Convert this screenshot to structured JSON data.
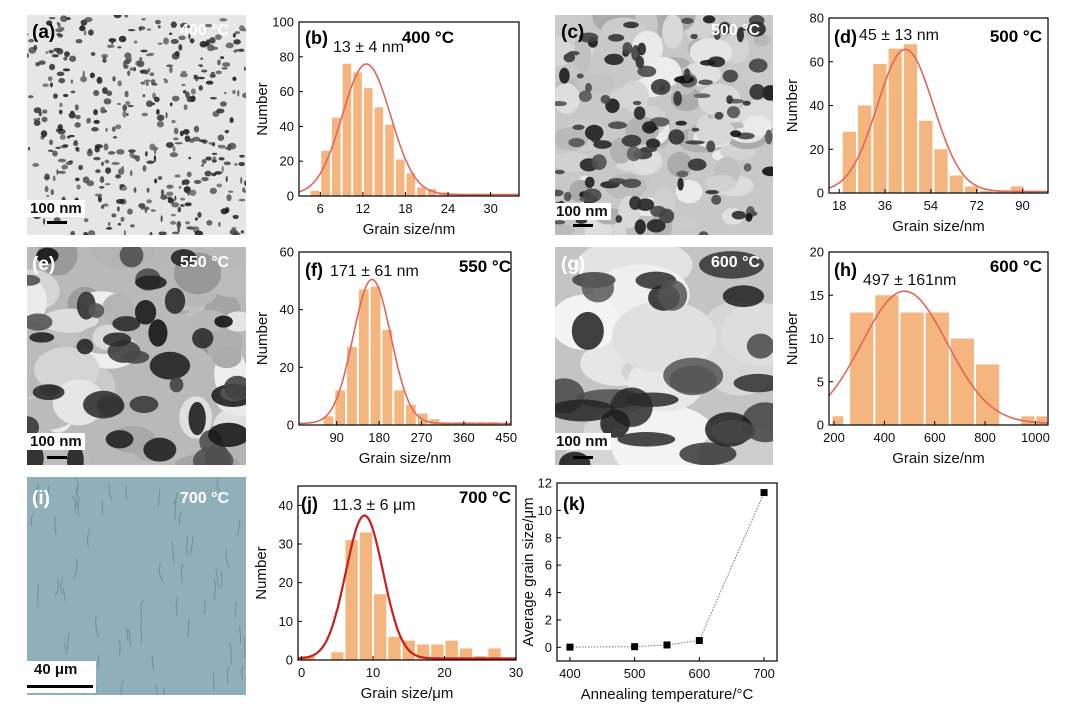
{
  "images": [
    {
      "id": "a",
      "label": "(a)",
      "temp": "400 °C",
      "scale": "100 nm",
      "style": "dots"
    },
    {
      "id": "c",
      "label": "(c)",
      "temp": "500 °C",
      "scale": "100 nm",
      "style": "blobs"
    },
    {
      "id": "e",
      "label": "(e)",
      "temp": "550 °C",
      "scale": "100 nm",
      "style": "grains"
    },
    {
      "id": "g",
      "label": "(g)",
      "temp": "600 °C",
      "scale": "100 nm",
      "style": "large"
    },
    {
      "id": "i",
      "label": "(i)",
      "temp": "700 °C",
      "scale": "40 μm",
      "style": "optical"
    }
  ],
  "chart_data": [
    {
      "id": "b",
      "type": "bar",
      "label": "(b)",
      "temp_label": "400 °C",
      "annotation": "13 ± 4 nm",
      "xlabel": "Grain size/nm",
      "ylabel": "Number",
      "xlim": [
        3,
        34
      ],
      "ylim": [
        0,
        100
      ],
      "xticks": [
        6,
        12,
        18,
        24,
        30
      ],
      "yticks": [
        0,
        20,
        40,
        60,
        80,
        100
      ],
      "bins": [
        [
          4.5,
          6,
          3
        ],
        [
          6,
          7.5,
          26
        ],
        [
          7.5,
          9,
          45
        ],
        [
          9,
          10.5,
          76
        ],
        [
          10.5,
          12,
          71
        ],
        [
          12,
          13.5,
          62
        ],
        [
          13.5,
          15,
          51
        ],
        [
          15,
          16.5,
          41
        ],
        [
          16.5,
          18,
          21
        ],
        [
          18,
          19.5,
          13
        ],
        [
          19.5,
          21,
          5
        ],
        [
          21,
          22.5,
          4
        ],
        [
          22.5,
          24,
          2
        ],
        [
          24,
          25.5,
          1
        ],
        [
          25.5,
          27,
          1
        ],
        [
          27,
          28.5,
          1
        ],
        [
          28.5,
          30,
          1
        ]
      ],
      "fit": {
        "mean": 12.5,
        "sd": 3.4,
        "amp": 75
      },
      "bar_color": "#f5b57e",
      "fit_color": "#e0675a"
    },
    {
      "id": "d",
      "type": "bar",
      "label": "(d)",
      "temp_label": "500 °C",
      "annotation": "45 ± 13 nm",
      "xlabel": "Grain size/nm",
      "ylabel": "Number",
      "xlim": [
        14,
        100
      ],
      "ylim": [
        0,
        80
      ],
      "xticks": [
        18,
        36,
        54,
        72,
        90
      ],
      "yticks": [
        0,
        20,
        40,
        60,
        80
      ],
      "bins": [
        [
          19,
          25,
          28
        ],
        [
          25,
          31,
          40
        ],
        [
          31,
          37,
          59
        ],
        [
          37,
          43,
          66
        ],
        [
          43,
          49,
          68
        ],
        [
          49,
          55,
          33
        ],
        [
          55,
          61,
          20
        ],
        [
          61,
          67,
          8
        ],
        [
          67,
          73,
          3
        ],
        [
          73,
          79,
          1
        ],
        [
          79,
          85,
          1
        ],
        [
          85,
          91,
          3
        ],
        [
          91,
          97,
          1
        ]
      ],
      "fit": {
        "mean": 44,
        "sd": 11,
        "amp": 65
      },
      "bar_color": "#f5b57e",
      "fit_color": "#e0675a"
    },
    {
      "id": "f",
      "type": "bar",
      "label": "(f)",
      "temp_label": "550 °C",
      "annotation": "171 ± 61 nm",
      "xlabel": "Grain size/nm",
      "ylabel": "Number",
      "xlim": [
        10,
        460
      ],
      "ylim": [
        0,
        60
      ],
      "xticks": [
        90,
        180,
        270,
        360,
        450
      ],
      "yticks": [
        0,
        20,
        40,
        60
      ],
      "bins": [
        [
          60,
          85,
          3
        ],
        [
          85,
          110,
          12
        ],
        [
          110,
          135,
          27
        ],
        [
          135,
          160,
          47
        ],
        [
          160,
          185,
          48
        ],
        [
          185,
          210,
          33
        ],
        [
          210,
          235,
          12
        ],
        [
          235,
          260,
          7
        ],
        [
          260,
          285,
          4
        ],
        [
          285,
          310,
          2
        ],
        [
          310,
          335,
          1
        ],
        [
          335,
          360,
          1
        ],
        [
          360,
          385,
          1
        ],
        [
          385,
          410,
          1
        ],
        [
          410,
          435,
          1
        ]
      ],
      "fit": {
        "mean": 165,
        "sd": 40,
        "amp": 50
      },
      "bar_color": "#f5b57e",
      "fit_color": "#e0675a"
    },
    {
      "id": "h",
      "type": "bar",
      "label": "(h)",
      "temp_label": "600 °C",
      "annotation": "497 ± 161nm",
      "xlabel": "Grain size/nm",
      "ylabel": "Number",
      "xlim": [
        180,
        1050
      ],
      "ylim": [
        0,
        20
      ],
      "xticks": [
        200,
        400,
        600,
        800,
        1000
      ],
      "yticks": [
        0,
        5,
        10,
        15,
        20
      ],
      "bins": [
        [
          190,
          240,
          1
        ],
        [
          260,
          360,
          13
        ],
        [
          360,
          460,
          15
        ],
        [
          460,
          560,
          13
        ],
        [
          560,
          660,
          13
        ],
        [
          660,
          760,
          10
        ],
        [
          760,
          860,
          7
        ],
        [
          940,
          1000,
          1
        ],
        [
          1000,
          1050,
          1
        ]
      ],
      "fit": {
        "mean": 480,
        "sd": 170,
        "amp": 15.3
      },
      "bar_color": "#f5b57e",
      "fit_color": "#e0675a"
    },
    {
      "id": "j",
      "type": "bar",
      "label": "(j)",
      "temp_label": "700 °C",
      "annotation": "11.3 ± 6 μm",
      "xlabel": "Grain size/μm",
      "ylabel": "Number",
      "xlim": [
        -0.5,
        30
      ],
      "ylim": [
        0,
        45
      ],
      "xticks": [
        0,
        10,
        20,
        30
      ],
      "yticks": [
        0,
        10,
        20,
        30,
        40
      ],
      "bins": [
        [
          0,
          2,
          1
        ],
        [
          4,
          6,
          2
        ],
        [
          6,
          8,
          31
        ],
        [
          8,
          10,
          33
        ],
        [
          10,
          12,
          17
        ],
        [
          12,
          14,
          6
        ],
        [
          14,
          16,
          5
        ],
        [
          16,
          18,
          4
        ],
        [
          18,
          20,
          4
        ],
        [
          20,
          22,
          5
        ],
        [
          22,
          24,
          3
        ],
        [
          24,
          26,
          1
        ],
        [
          26,
          28,
          3
        ]
      ],
      "fit": {
        "mean": 8.8,
        "sd": 2.6,
        "amp": 37
      },
      "bar_color": "#f5b57e",
      "fit_color": "#c81e1e"
    },
    {
      "id": "k",
      "type": "scatter",
      "label": "(k)",
      "xlabel": "Annealing temperature/°C",
      "ylabel": "Average grain size/μm",
      "xlim": [
        380,
        720
      ],
      "ylim": [
        -1,
        12
      ],
      "xticks": [
        400,
        500,
        600,
        700
      ],
      "yticks": [
        0,
        2,
        4,
        6,
        8,
        10,
        12
      ],
      "x": [
        400,
        500,
        550,
        600,
        700
      ],
      "y": [
        0.013,
        0.045,
        0.171,
        0.497,
        11.3
      ]
    }
  ]
}
